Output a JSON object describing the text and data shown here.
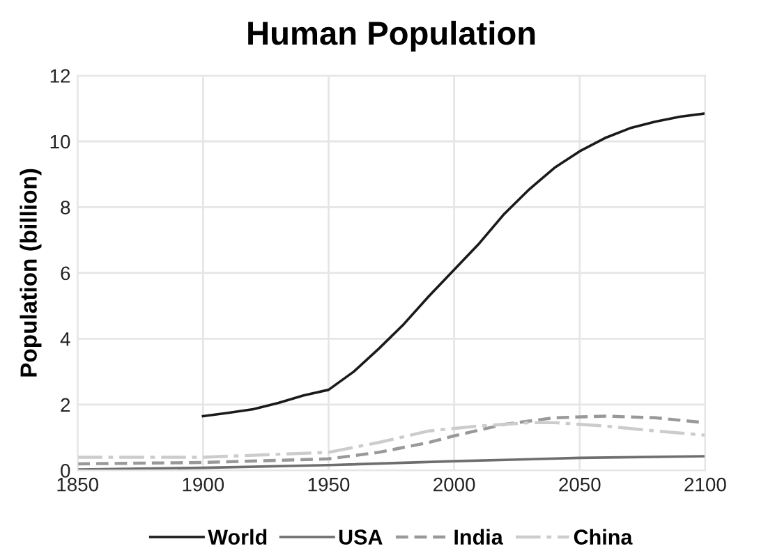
{
  "chart_data": {
    "type": "line",
    "title": "Human Population",
    "ylabel": "Population (billion)",
    "xlim": [
      1850,
      2100
    ],
    "xticks": [
      1850,
      1900,
      1950,
      2000,
      2050,
      2100
    ],
    "ylim": [
      0,
      12
    ],
    "yticks": [
      0,
      2,
      4,
      6,
      8,
      10,
      12
    ],
    "grid": true,
    "legend": "bottom",
    "marker": "none",
    "series": [
      {
        "name": "World",
        "color": "#1a1a1a",
        "line_style": "solid",
        "x": [
          1900,
          1910,
          1920,
          1930,
          1940,
          1950,
          1960,
          1970,
          1980,
          1990,
          2000,
          2010,
          2020,
          2030,
          2040,
          2050,
          2060,
          2070,
          2080,
          2090,
          2100
        ],
        "values": [
          1.65,
          1.75,
          1.86,
          2.05,
          2.28,
          2.45,
          3.0,
          3.7,
          4.45,
          5.3,
          6.1,
          6.9,
          7.8,
          8.55,
          9.2,
          9.7,
          10.1,
          10.4,
          10.6,
          10.75,
          10.85
        ]
      },
      {
        "name": "USA",
        "color": "#6e6e6e",
        "line_style": "solid",
        "x": [
          1850,
          1900,
          1950,
          2000,
          2050,
          2100
        ],
        "values": [
          0.03,
          0.08,
          0.16,
          0.28,
          0.38,
          0.43
        ]
      },
      {
        "name": "India",
        "color": "#999999",
        "line_style": "dashed",
        "x": [
          1850,
          1900,
          1950,
          1970,
          1990,
          2000,
          2020,
          2040,
          2060,
          2080,
          2100
        ],
        "values": [
          0.2,
          0.24,
          0.35,
          0.55,
          0.85,
          1.05,
          1.4,
          1.6,
          1.65,
          1.6,
          1.45
        ]
      },
      {
        "name": "China",
        "color": "#cccccc",
        "line_style": "dashdot",
        "x": [
          1850,
          1900,
          1950,
          1970,
          1990,
          2010,
          2030,
          2040,
          2060,
          2080,
          2100
        ],
        "values": [
          0.4,
          0.4,
          0.55,
          0.85,
          1.2,
          1.35,
          1.45,
          1.45,
          1.35,
          1.2,
          1.07
        ]
      }
    ]
  }
}
